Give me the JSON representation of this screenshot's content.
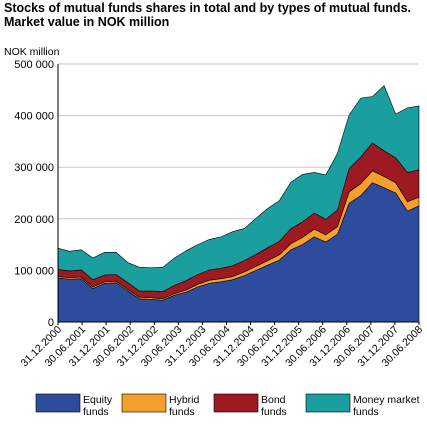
{
  "title": "Stocks of mutual funds shares in total and by types of  mutual funds. Market value in NOK million",
  "chart_data": {
    "type": "area",
    "stacked": true,
    "title": "Stocks of mutual funds shares in total and by types of  mutual funds. Market value in NOK million",
    "ylabel": "NOK million",
    "ylim": [
      0,
      500000
    ],
    "yticks": [
      0,
      100000,
      200000,
      300000,
      400000,
      500000
    ],
    "ytick_labels": [
      "0",
      "100 000",
      "200 000",
      "300 000",
      "400 000",
      "500 000"
    ],
    "xtick_labels": [
      "31.12.2000",
      "30.06.2001",
      "31.12.2001",
      "30.06.2002",
      "31.12.2002",
      "30.06.2003",
      "31.12.2003",
      "30.06.2004",
      "31.12.2004",
      "30.06.2005",
      "31.12.2005",
      "30.06.2006",
      "31.12.2006",
      "30.06.2007",
      "31.12.2007",
      "30.06.2008"
    ],
    "grid": true,
    "legend": "bottom",
    "x": [
      "12.2000",
      "03.2001",
      "06.2001",
      "09.2001",
      "12.2001",
      "03.2002",
      "06.2002",
      "09.2002",
      "12.2002",
      "03.2003",
      "06.2003",
      "09.2003",
      "12.2003",
      "03.2004",
      "06.2004",
      "09.2004",
      "12.2004",
      "03.2005",
      "06.2005",
      "09.2005",
      "12.2005",
      "03.2006",
      "06.2006",
      "09.2006",
      "12.2006",
      "03.2007",
      "06.2007",
      "09.2007",
      "12.2007",
      "03.2008",
      "06.2008",
      "09.2008"
    ],
    "series": [
      {
        "name": "Equity funds",
        "color": "#2e4c9e",
        "values": [
          85000,
          83000,
          84000,
          65000,
          75000,
          76000,
          60000,
          45000,
          44000,
          42000,
          52000,
          58000,
          68000,
          75000,
          78000,
          82000,
          90000,
          100000,
          110000,
          120000,
          140000,
          150000,
          165000,
          155000,
          170000,
          230000,
          245000,
          270000,
          260000,
          250000,
          215000,
          225000
        ]
      },
      {
        "name": "Hybrid funds",
        "color": "#f5a02c",
        "values": [
          3000,
          3000,
          3000,
          3000,
          3000,
          3000,
          3000,
          3000,
          3000,
          3000,
          3000,
          4000,
          5000,
          6000,
          6000,
          6000,
          7000,
          8000,
          9000,
          10000,
          12000,
          14000,
          15000,
          14000,
          15000,
          22000,
          23000,
          23000,
          22000,
          20000,
          18000,
          17000
        ]
      },
      {
        "name": "Bond funds",
        "color": "#9e1a22",
        "values": [
          14000,
          13000,
          14000,
          14000,
          13000,
          13000,
          13000,
          12000,
          13000,
          14000,
          16000,
          18000,
          19000,
          20000,
          20000,
          21000,
          22000,
          23000,
          25000,
          26000,
          29000,
          30000,
          31000,
          30000,
          32000,
          45000,
          52000,
          54000,
          50000,
          48000,
          57000,
          53000
        ]
      },
      {
        "name": "Money market funds",
        "color": "#1a9e9e",
        "values": [
          41000,
          38000,
          39000,
          42000,
          44000,
          43000,
          39000,
          46000,
          45000,
          47000,
          53000,
          58000,
          58000,
          59000,
          61000,
          66000,
          62000,
          70000,
          76000,
          79000,
          90000,
          92000,
          79000,
          86000,
          110000,
          104000,
          114000,
          90000,
          126000,
          85000,
          125000,
          124000
        ]
      }
    ]
  }
}
